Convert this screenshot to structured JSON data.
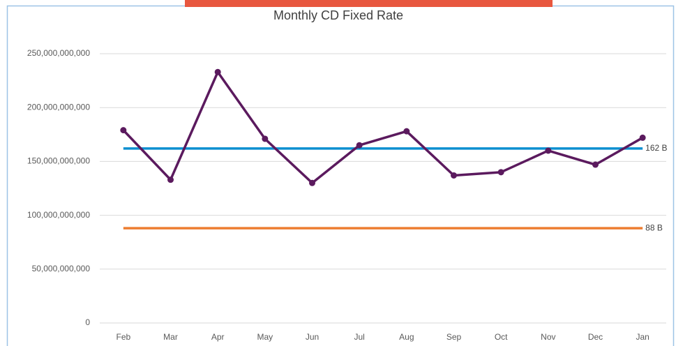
{
  "chart_data": {
    "type": "line",
    "title": "Monthly CD Fixed Rate",
    "categories": [
      "Feb",
      "Mar",
      "Apr",
      "May",
      "Jun",
      "Jul",
      "Aug",
      "Sep",
      "Oct",
      "Nov",
      "Dec",
      "Jan"
    ],
    "series": [
      {
        "color": "#5b1a5e",
        "values": [
          179000000000,
          133000000000,
          233000000000,
          171000000000,
          130000000000,
          165000000000,
          178000000000,
          137000000000,
          140000000000,
          160000000000,
          147000000000,
          172000000000
        ]
      }
    ],
    "reference_lines": [
      {
        "value": 162000000000,
        "label": "162 B",
        "color": "#0d8fd0"
      },
      {
        "value": 88000000000,
        "label": "88 B",
        "color": "#ed7d31"
      }
    ],
    "ylim": [
      0,
      250000000000
    ],
    "yticks": [
      0,
      {
        "value": 50000000000,
        "label": "50,000,000,000"
      },
      {
        "value": 100000000000,
        "label": "100,000,000,000"
      },
      {
        "value": 150000000000,
        "label": "150,000,000,000"
      },
      {
        "value": 200000000000,
        "label": "200,000,000,000"
      },
      {
        "value": 250000000000,
        "label": "250,000,000,000"
      }
    ],
    "grid": true
  }
}
